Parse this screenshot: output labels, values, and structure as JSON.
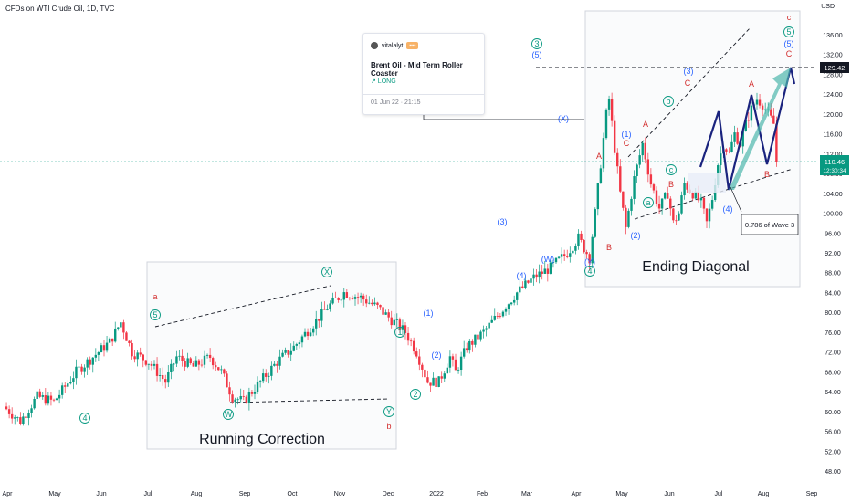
{
  "header": {
    "symbol": "CFDs on WTI Crude Oil, 1D, TVC",
    "currency": "USD"
  },
  "idea_card": {
    "author": "vitalalyt",
    "title": "Brent Oil - Mid Term Roller Coaster",
    "direction": "↗ LONG",
    "date": "01 Jun 22 · 21:15"
  },
  "chart_data": {
    "type": "candlestick",
    "y_range": [
      46,
      140
    ],
    "y_ticks": [
      "136.00",
      "132.00",
      "128.00",
      "124.00",
      "120.00",
      "116.00",
      "112.00",
      "108.00",
      "104.00",
      "100.00",
      "96.00",
      "92.00",
      "88.00",
      "84.00",
      "80.00",
      "76.00",
      "72.00",
      "68.00",
      "64.00",
      "60.00",
      "56.00",
      "52.00",
      "48.00"
    ],
    "x_ticks": [
      "Apr",
      "May",
      "Jun",
      "Jul",
      "Aug",
      "Sep",
      "Oct",
      "Nov",
      "Dec",
      "2022",
      "Feb",
      "Mar",
      "Apr",
      "May",
      "Jun",
      "Jul",
      "Aug",
      "Sep"
    ],
    "price_path": [
      [
        0,
        61
      ],
      [
        3,
        58
      ],
      [
        6,
        63
      ],
      [
        9,
        62
      ],
      [
        13,
        68
      ],
      [
        16,
        71
      ],
      [
        19,
        74
      ],
      [
        21,
        78
      ],
      [
        23,
        72
      ],
      [
        26,
        70
      ],
      [
        29,
        66
      ],
      [
        31,
        71
      ],
      [
        34,
        69
      ],
      [
        37,
        71
      ],
      [
        39,
        68
      ],
      [
        41,
        63
      ],
      [
        43,
        62
      ],
      [
        46,
        66
      ],
      [
        49,
        70
      ],
      [
        52,
        73
      ],
      [
        55,
        77
      ],
      [
        58,
        81
      ],
      [
        61,
        84
      ],
      [
        64,
        83
      ],
      [
        67,
        81
      ],
      [
        70,
        78
      ],
      [
        72,
        76
      ],
      [
        74,
        72
      ],
      [
        76,
        66
      ],
      [
        78,
        66
      ],
      [
        80,
        71
      ],
      [
        81,
        68
      ],
      [
        83,
        73
      ],
      [
        86,
        76
      ],
      [
        89,
        80
      ],
      [
        92,
        84
      ],
      [
        95,
        87
      ],
      [
        98,
        89
      ],
      [
        101,
        92
      ],
      [
        103,
        95
      ],
      [
        105,
        91
      ],
      [
        106,
        100
      ],
      [
        107,
        110
      ],
      [
        108,
        120
      ],
      [
        108.5,
        123
      ],
      [
        109.5,
        113
      ],
      [
        110.5,
        104
      ],
      [
        111.5,
        97
      ],
      [
        113,
        107
      ],
      [
        114.5,
        114
      ],
      [
        116,
        106
      ],
      [
        117.5,
        101
      ],
      [
        119,
        104
      ],
      [
        120,
        98
      ],
      [
        121,
        100
      ],
      [
        122,
        106
      ],
      [
        123.5,
        104
      ],
      [
        125,
        102
      ],
      [
        126,
        98
      ],
      [
        127,
        103
      ],
      [
        128,
        110
      ],
      [
        129,
        114
      ],
      [
        130,
        112
      ],
      [
        131,
        116
      ],
      [
        132,
        114
      ],
      [
        133,
        118
      ],
      [
        134,
        121
      ],
      [
        135,
        123
      ],
      [
        136,
        122
      ],
      [
        137,
        120
      ],
      [
        138,
        118
      ],
      [
        138.5,
        110.46
      ]
    ],
    "current_price": "110.46",
    "current_price_time": "12:30:34",
    "target_price": "129.42",
    "annotations": {
      "a_top_left": "a",
      "wave5_left": "5",
      "wave4_left": "4",
      "W_low": "W",
      "X_high": "X",
      "Y_low": "Y",
      "b_red": "b",
      "wave1_circ": "1",
      "wave2_circ": "2",
      "paren1": "(1)",
      "paren2": "(2)",
      "paren3": "(3)",
      "paren4": "(4)",
      "circ3": "3",
      "paren5": "(5)",
      "W_paren": "(W)",
      "X_paren": "(X)",
      "Y_paren": "(Y)",
      "circ4": "4",
      "sub1": "(1)",
      "sub2": "(2)",
      "sub3": "(3)",
      "sub4": "(4)",
      "A1": "A",
      "C1": "C",
      "A2": "A",
      "B2": "B",
      "C2": "C",
      "B1": "B",
      "circ_a": "a",
      "circ_b": "b",
      "circ_c": "c",
      "proj_A": "A",
      "proj_B": "B",
      "proj_C": "C",
      "proj_c": "c",
      "proj_5circ": "5",
      "proj_5paren": "(5)",
      "fib_note": "0.786 of Wave 3"
    },
    "box_labels": {
      "running_correction": "Running Correction",
      "ending_diagonal": "Ending Diagonal"
    }
  },
  "colors": {
    "up": "#089981",
    "down": "#f23645",
    "wave_blue": "#2962ff",
    "wave_green": "#089981",
    "wave_red": "#d32f2f",
    "proj_navy": "#1a237e",
    "proj_teal": "#4db6ac",
    "box_bg": "#f8f9fb",
    "box_border": "#d1d4dc"
  }
}
